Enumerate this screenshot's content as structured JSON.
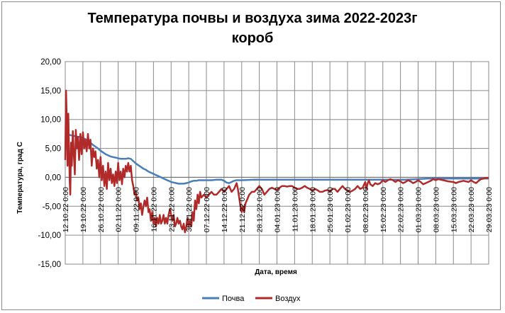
{
  "chart_data": {
    "type": "line",
    "title": "Температура почвы и воздуха зима 2022-2023г",
    "subtitle": "короб",
    "xlabel": "Дата, время",
    "ylabel": "Температура, град С",
    "ylim": [
      -15,
      20
    ],
    "y_step": 5,
    "y_tick_labels": [
      "20,00",
      "15,00",
      "10,00",
      "5,00",
      "0,00",
      "-5,00",
      "-10,00",
      "-15,00"
    ],
    "x_tick_labels": [
      "12.10.22 0:00",
      "19.10.22 0:00",
      "26.10.22 0:00",
      "02.11.22 0:00",
      "09.11.22 0:00",
      "16.11.22 0:00",
      "23.11.22 0:00",
      "30.11.22 0:00",
      "07.12.22 0:00",
      "14.12.22 0:00",
      "21.12.22 0:00",
      "28.12.22 0:00",
      "04.01.23 0:00",
      "11.01.23 0:00",
      "18.01.23 0:00",
      "25.01.23 0:00",
      "01.02.23 0:00",
      "08.02.23 0:00",
      "15.02.23 0:00",
      "22.02.23 0:00",
      "01.03.23 0:00",
      "08.03.23 0:00",
      "15.03.23 0:00",
      "22.03.23 0:00",
      "29.03.23 0:00"
    ],
    "x_unit": "days from 12.10.22",
    "grid": true,
    "legend_position": "bottom",
    "series": [
      {
        "name": "Почва",
        "color": "#4a7eba",
        "points": [
          [
            0,
            7.5
          ],
          [
            1,
            7.4
          ],
          [
            2,
            7.3
          ],
          [
            3,
            7.2
          ],
          [
            4,
            7.1
          ],
          [
            5,
            7.0
          ],
          [
            6,
            7.0
          ],
          [
            7,
            6.8
          ],
          [
            8,
            6.6
          ],
          [
            9,
            6.4
          ],
          [
            10,
            6.0
          ],
          [
            11,
            5.6
          ],
          [
            12,
            5.3
          ],
          [
            13,
            5.0
          ],
          [
            14,
            4.6
          ],
          [
            15,
            4.3
          ],
          [
            16,
            4.0
          ],
          [
            17,
            3.8
          ],
          [
            18,
            3.6
          ],
          [
            19,
            3.5
          ],
          [
            20,
            3.4
          ],
          [
            21,
            3.3
          ],
          [
            22,
            3.2
          ],
          [
            23,
            3.2
          ],
          [
            24,
            3.2
          ],
          [
            25,
            3.3
          ],
          [
            26,
            3.2
          ],
          [
            27,
            2.8
          ],
          [
            28,
            2.4
          ],
          [
            29,
            2.1
          ],
          [
            30,
            1.8
          ],
          [
            31,
            1.5
          ],
          [
            32,
            1.3
          ],
          [
            33,
            1.0
          ],
          [
            34,
            0.8
          ],
          [
            35,
            0.6
          ],
          [
            36,
            0.4
          ],
          [
            37,
            0.2
          ],
          [
            38,
            0.0
          ],
          [
            39,
            -0.2
          ],
          [
            40,
            -0.4
          ],
          [
            41,
            -0.6
          ],
          [
            42,
            -0.8
          ],
          [
            43,
            -0.9
          ],
          [
            44,
            -1.0
          ],
          [
            45,
            -1.1
          ],
          [
            46,
            -1.1
          ],
          [
            47,
            -1.1
          ],
          [
            48,
            -1.0
          ],
          [
            49,
            -0.9
          ],
          [
            50,
            -0.7
          ],
          [
            51,
            -0.6
          ],
          [
            52,
            -0.6
          ],
          [
            53,
            -0.5
          ],
          [
            55,
            -0.5
          ],
          [
            58,
            -0.5
          ],
          [
            60,
            -0.4
          ],
          [
            62,
            -0.4
          ],
          [
            63,
            -0.6
          ],
          [
            64,
            -0.9
          ],
          [
            65,
            -1.0
          ],
          [
            66,
            -0.8
          ],
          [
            67,
            -0.6
          ],
          [
            68,
            -0.5
          ],
          [
            70,
            -0.5
          ],
          [
            75,
            -0.4
          ],
          [
            80,
            -0.4
          ],
          [
            85,
            -0.4
          ],
          [
            90,
            -0.4
          ],
          [
            95,
            -0.4
          ],
          [
            100,
            -0.4
          ],
          [
            105,
            -0.4
          ],
          [
            110,
            -0.4
          ],
          [
            115,
            -0.4
          ],
          [
            120,
            -0.4
          ],
          [
            125,
            -0.4
          ],
          [
            130,
            -0.4
          ],
          [
            135,
            -0.4
          ],
          [
            140,
            -0.3
          ],
          [
            144,
            -0.2
          ],
          [
            168,
            -0.2
          ]
        ]
      },
      {
        "name": "Воздух",
        "color": "#b02a2a",
        "points": [
          [
            0,
            3.0
          ],
          [
            0.3,
            15.0
          ],
          [
            0.6,
            10.0
          ],
          [
            0.9,
            2.0
          ],
          [
            1.2,
            11.0
          ],
          [
            1.5,
            5.0
          ],
          [
            1.8,
            -1.0
          ],
          [
            2.0,
            -3.0
          ],
          [
            2.3,
            6.0
          ],
          [
            2.6,
            2.0
          ],
          [
            3.0,
            8.0
          ],
          [
            3.4,
            4.0
          ],
          [
            3.8,
            0.5
          ],
          [
            4.2,
            8.2
          ],
          [
            4.6,
            5.0
          ],
          [
            5.0,
            7.0
          ],
          [
            5.5,
            3.0
          ],
          [
            6.0,
            7.5
          ],
          [
            6.5,
            4.0
          ],
          [
            7.0,
            7.8
          ],
          [
            7.5,
            5.0
          ],
          [
            8.0,
            6.5
          ],
          [
            8.5,
            4.5
          ],
          [
            9.0,
            7.5
          ],
          [
            9.5,
            5.0
          ],
          [
            10.0,
            6.5
          ],
          [
            10.5,
            2.0
          ],
          [
            11.0,
            5.0
          ],
          [
            11.5,
            3.5
          ],
          [
            12.0,
            4.5
          ],
          [
            12.5,
            1.5
          ],
          [
            13.0,
            3.0
          ],
          [
            13.5,
            0.0
          ],
          [
            14.0,
            3.5
          ],
          [
            14.5,
            -0.5
          ],
          [
            15.0,
            2.0
          ],
          [
            15.5,
            -1.5
          ],
          [
            16.0,
            1.0
          ],
          [
            16.5,
            -2.0
          ],
          [
            17.0,
            2.5
          ],
          [
            17.5,
            -0.5
          ],
          [
            18.0,
            1.5
          ],
          [
            18.5,
            -1.0
          ],
          [
            19.0,
            0.5
          ],
          [
            19.5,
            -1.5
          ],
          [
            20.0,
            1.0
          ],
          [
            20.5,
            -1.0
          ],
          [
            21.0,
            2.5
          ],
          [
            21.5,
            -0.5
          ],
          [
            22.0,
            1.0
          ],
          [
            22.5,
            -1.2
          ],
          [
            23.0,
            1.5
          ],
          [
            23.5,
            0.0
          ],
          [
            24.0,
            2.0
          ],
          [
            24.5,
            1.0
          ],
          [
            25.0,
            2.5
          ],
          [
            25.5,
            1.0
          ],
          [
            26.0,
            2.0
          ],
          [
            26.5,
            -0.5
          ],
          [
            27.0,
            -1.5
          ],
          [
            27.5,
            -3.0
          ],
          [
            28.0,
            -2.5
          ],
          [
            28.5,
            -4.0
          ],
          [
            29.0,
            -3.5
          ],
          [
            29.5,
            -5.5
          ],
          [
            30.0,
            -4.5
          ],
          [
            30.5,
            -6.5
          ],
          [
            31.0,
            -5.0
          ],
          [
            31.5,
            -4.0
          ],
          [
            32.0,
            -5.0
          ],
          [
            32.5,
            -3.5
          ],
          [
            33.0,
            -6.0
          ],
          [
            33.5,
            -5.5
          ],
          [
            34.0,
            -7.5
          ],
          [
            34.5,
            -6.0
          ],
          [
            35.0,
            -8.0
          ],
          [
            35.5,
            -7.0
          ],
          [
            36.0,
            -8.5
          ],
          [
            36.5,
            -7.0
          ],
          [
            37.0,
            -8.0
          ],
          [
            37.5,
            -6.5
          ],
          [
            38.0,
            -8.0
          ],
          [
            38.5,
            -7.5
          ],
          [
            39.0,
            -6.5
          ],
          [
            39.5,
            -8.0
          ],
          [
            40.0,
            -7.0
          ],
          [
            40.5,
            -8.0
          ],
          [
            41.0,
            -6.5
          ],
          [
            41.5,
            -5.5
          ],
          [
            42.0,
            -6.5
          ],
          [
            42.5,
            -7.5
          ],
          [
            43.0,
            -6.5
          ],
          [
            43.5,
            -8.5
          ],
          [
            44.0,
            -8.0
          ],
          [
            44.5,
            -7.0
          ],
          [
            45.0,
            -8.0
          ],
          [
            45.5,
            -7.5
          ],
          [
            46.0,
            -8.5
          ],
          [
            46.5,
            -9.0
          ],
          [
            47.0,
            -8.0
          ],
          [
            47.5,
            -9.5
          ],
          [
            48.0,
            -8.5
          ],
          [
            48.5,
            -7.0
          ],
          [
            49.0,
            -8.5
          ],
          [
            49.5,
            -7.5
          ],
          [
            50.0,
            -8.5
          ],
          [
            50.5,
            -6.0
          ],
          [
            51.0,
            -7.5
          ],
          [
            51.5,
            -4.0
          ],
          [
            52.0,
            -5.5
          ],
          [
            52.5,
            -3.0
          ],
          [
            53.0,
            -4.5
          ],
          [
            53.5,
            -2.5
          ],
          [
            54.0,
            -3.5
          ],
          [
            55.0,
            -3.0
          ],
          [
            56.0,
            -3.5
          ],
          [
            57.0,
            -3.0
          ],
          [
            58.0,
            -2.5
          ],
          [
            59.0,
            -3.0
          ],
          [
            60.0,
            -3.0
          ],
          [
            61.0,
            -2.5
          ],
          [
            62.0,
            -2.0
          ],
          [
            63.0,
            -2.5
          ],
          [
            64.0,
            -2.0
          ],
          [
            65.0,
            -1.5
          ],
          [
            66.0,
            -2.5
          ],
          [
            67.0,
            -2.0
          ],
          [
            68.0,
            -1.0
          ],
          [
            68.5,
            -2.0
          ],
          [
            69.0,
            -3.5
          ],
          [
            69.5,
            -5.0
          ],
          [
            70.0,
            -6.0
          ],
          [
            70.5,
            -5.0
          ],
          [
            71.0,
            -6.0
          ],
          [
            71.5,
            -4.5
          ],
          [
            72.0,
            -4.0
          ],
          [
            73.0,
            -3.0
          ],
          [
            74.0,
            -2.5
          ],
          [
            75.0,
            -2.5
          ],
          [
            76.0,
            -2.0
          ],
          [
            77.0,
            -1.5
          ],
          [
            78.0,
            -2.0
          ],
          [
            79.0,
            -3.0
          ],
          [
            80.0,
            -2.5
          ],
          [
            81.0,
            -2.0
          ],
          [
            82.0,
            -1.8
          ],
          [
            83.0,
            -2.0
          ],
          [
            84.0,
            -2.2
          ],
          [
            85.0,
            -1.8
          ],
          [
            86.0,
            -1.5
          ],
          [
            87.0,
            -1.5
          ],
          [
            88.0,
            -1.6
          ],
          [
            89.0,
            -1.5
          ],
          [
            90.0,
            -1.5
          ],
          [
            91.0,
            -1.8
          ],
          [
            92.0,
            -2.0
          ],
          [
            93.0,
            -2.0
          ],
          [
            94.0,
            -1.8
          ],
          [
            95.0,
            -1.5
          ],
          [
            96.0,
            -1.8
          ],
          [
            97.0,
            -2.0
          ],
          [
            98.0,
            -2.3
          ],
          [
            99.0,
            -2.0
          ],
          [
            100.0,
            -2.2
          ],
          [
            101.0,
            -2.5
          ],
          [
            102.0,
            -2.5
          ],
          [
            103.0,
            -2.3
          ],
          [
            104.0,
            -2.2
          ],
          [
            105.0,
            -2.5
          ],
          [
            106.0,
            -2.0
          ],
          [
            107.0,
            -2.0
          ],
          [
            108.0,
            -2.5
          ],
          [
            109.0,
            -2.0
          ],
          [
            110.0,
            -1.5
          ],
          [
            111.0,
            -2.0
          ],
          [
            112.0,
            -2.3
          ],
          [
            113.0,
            -2.5
          ],
          [
            114.0,
            -2.3
          ],
          [
            115.0,
            -2.0
          ],
          [
            116.0,
            -1.5
          ],
          [
            117.0,
            -2.0
          ],
          [
            118.0,
            -1.8
          ],
          [
            119.0,
            -0.8
          ],
          [
            119.5,
            -2.0
          ],
          [
            120.0,
            -1.0
          ],
          [
            120.5,
            -0.5
          ],
          [
            121.0,
            -1.2
          ],
          [
            122.0,
            -1.5
          ],
          [
            123.0,
            -1.0
          ],
          [
            124.0,
            -1.2
          ],
          [
            125.0,
            -1.0
          ],
          [
            126.0,
            -0.5
          ],
          [
            127.0,
            -0.8
          ],
          [
            128.0,
            -0.5
          ],
          [
            129.0,
            -0.3
          ],
          [
            130.0,
            -0.5
          ],
          [
            131.0,
            -0.8
          ],
          [
            132.0,
            -0.5
          ],
          [
            133.0,
            -0.7
          ],
          [
            134.0,
            -1.0
          ],
          [
            135.0,
            -0.8
          ],
          [
            136.0,
            -0.5
          ],
          [
            137.0,
            -0.7
          ],
          [
            138.0,
            -1.0
          ],
          [
            139.0,
            -0.8
          ],
          [
            140.0,
            -0.5
          ],
          [
            141.0,
            -0.8
          ],
          [
            142.0,
            -1.2
          ],
          [
            143.0,
            -1.0
          ],
          [
            144.0,
            -0.8
          ],
          [
            145.0,
            -0.6
          ],
          [
            146.0,
            -0.3
          ],
          [
            147.0,
            -0.5
          ],
          [
            148.0,
            -0.3
          ],
          [
            150.0,
            -0.5
          ],
          [
            152.0,
            -0.7
          ],
          [
            154.0,
            -0.8
          ],
          [
            155.0,
            -1.0
          ],
          [
            156.0,
            -0.8
          ],
          [
            158.0,
            -0.6
          ],
          [
            160.0,
            -0.8
          ],
          [
            161.0,
            -0.5
          ],
          [
            162.0,
            -0.8
          ],
          [
            163.0,
            -1.0
          ],
          [
            164.0,
            -0.6
          ],
          [
            165.0,
            -0.3
          ],
          [
            166.0,
            -0.2
          ],
          [
            167.0,
            -0.1
          ],
          [
            168.0,
            -0.1
          ]
        ]
      }
    ]
  }
}
